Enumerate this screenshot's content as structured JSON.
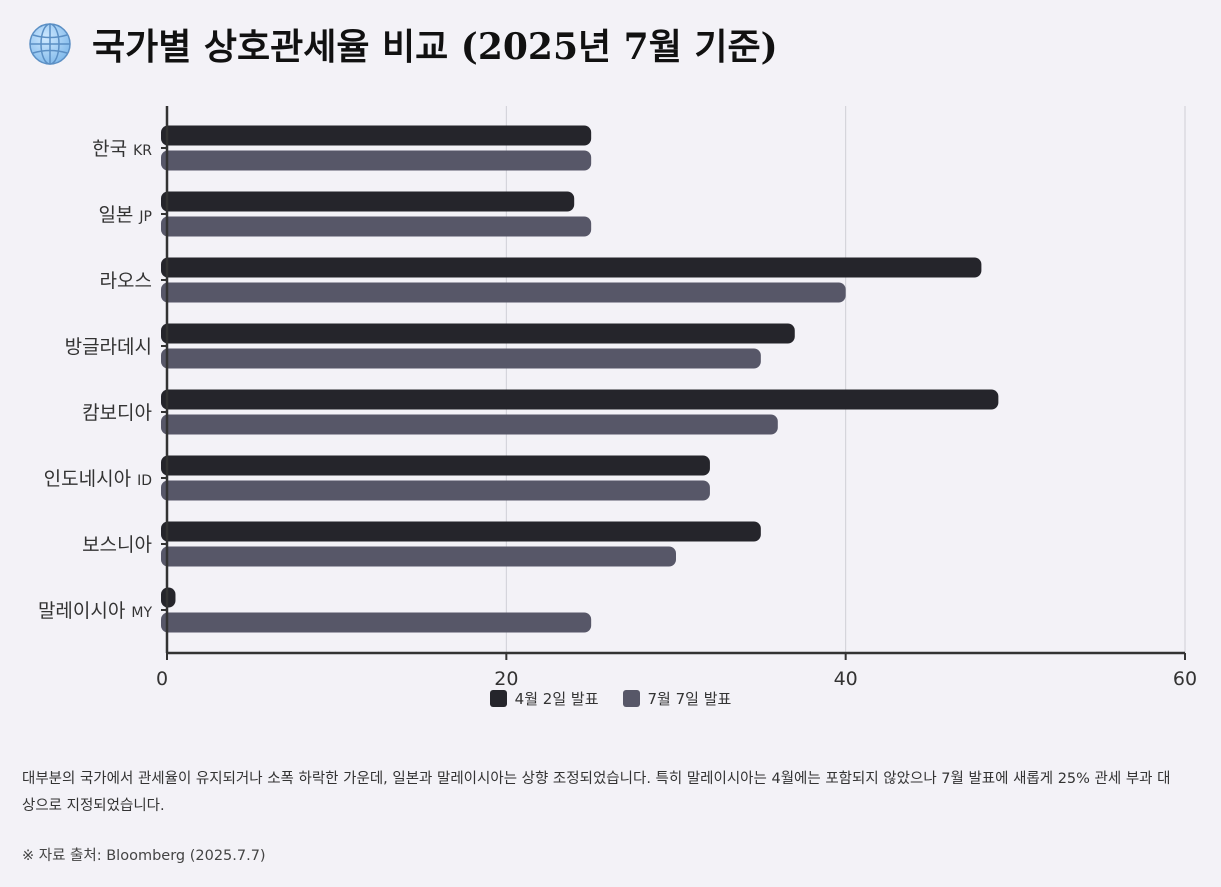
{
  "header": {
    "title": "국가별 상호관세율 비교 (2025년 7월 기준)",
    "icon": "globe-icon"
  },
  "chart_data": {
    "type": "bar",
    "orientation": "horizontal",
    "categories": [
      {
        "name": "한국",
        "code": "KR"
      },
      {
        "name": "일본",
        "code": "JP"
      },
      {
        "name": "라오스",
        "code": ""
      },
      {
        "name": "방글라데시",
        "code": ""
      },
      {
        "name": "캄보디아",
        "code": ""
      },
      {
        "name": "인도네시아",
        "code": "ID"
      },
      {
        "name": "보스니아",
        "code": ""
      },
      {
        "name": "말레이시아",
        "code": "MY"
      }
    ],
    "series": [
      {
        "name": "4월 2일 발표",
        "color": "#25252b",
        "values": [
          25,
          24,
          48,
          37,
          49,
          32,
          35,
          0.5
        ]
      },
      {
        "name": "7월 7일 발표",
        "color": "#575768",
        "values": [
          25,
          25,
          40,
          35,
          36,
          32,
          30,
          25
        ]
      }
    ],
    "xlim": [
      0,
      60
    ],
    "xticks": [
      0,
      20,
      40,
      60
    ],
    "grid": true,
    "legend_position": "bottom"
  },
  "description": "대부분의 국가에서 관세율이 유지되거나 소폭 하락한 가운데, 일본과 말레이시아는 상향 조정되었습니다. 특히 말레이시아는 4월에는 포함되지 않았으나 7월 발표에 새롭게 25% 관세 부과 대상으로 지정되었습니다.",
  "source": "※ 자료 출처: Bloomberg (2025.7.7)"
}
